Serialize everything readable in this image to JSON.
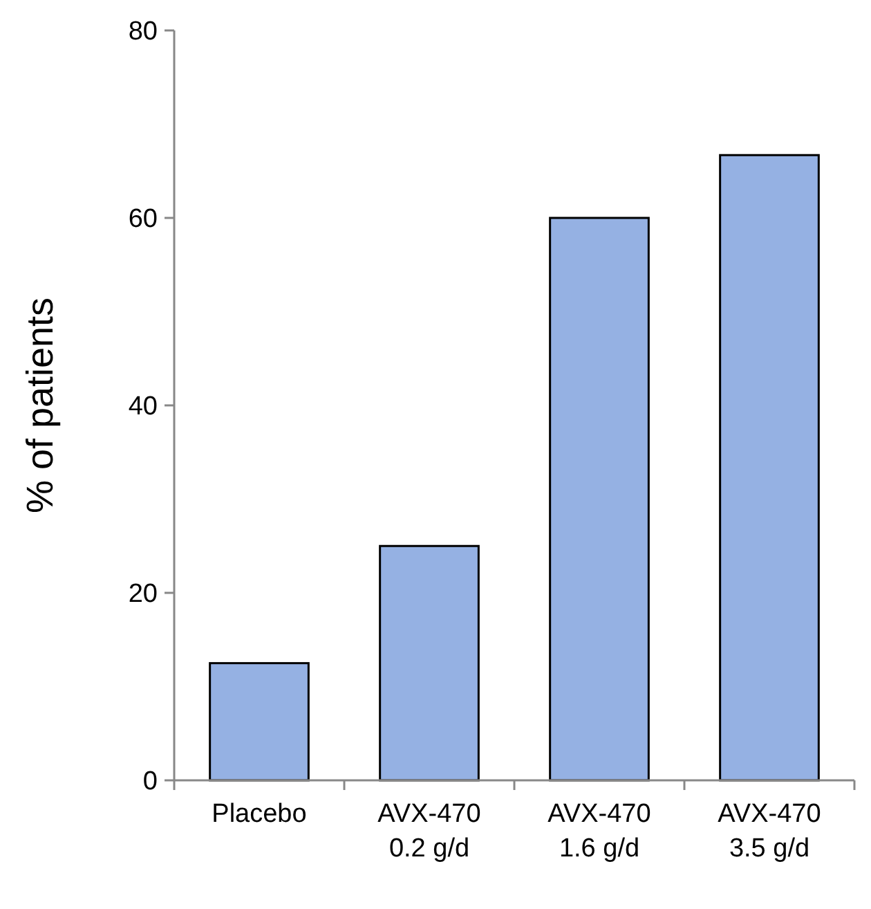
{
  "chart_data": {
    "type": "bar",
    "ylabel": "% of patients",
    "categories": [
      "Placebo",
      "AVX-470\n0.2 g/d",
      "AVX-470\n1.6 g/d",
      "AVX-470\n3.5 g/d"
    ],
    "values": [
      12.5,
      25,
      60,
      66.7
    ],
    "color": "#95b1e3",
    "ylim": [
      0,
      80
    ],
    "yticks": [
      0,
      20,
      40,
      60,
      80
    ]
  }
}
